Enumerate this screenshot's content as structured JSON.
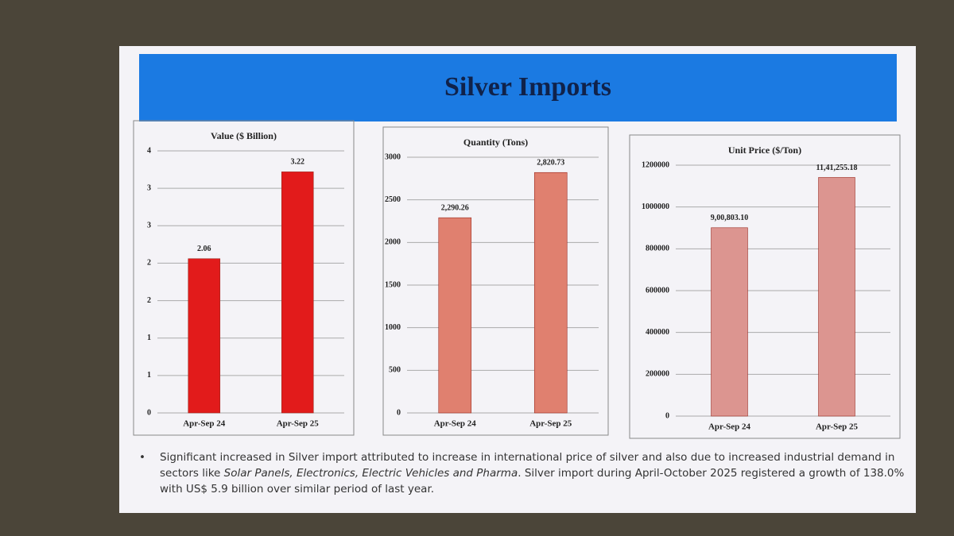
{
  "title": "Silver Imports",
  "note": [
    "Significant increased in Silver import attributed to increase in international price of silver and also due to increased industrial demand in sectors like ",
    "Solar Panels, Electronics, Electric Vehicles and Pharma",
    ". Silver import during April-October 2025 registered a growth of 138.0% with US$ 5.9 billion over similar period of last year."
  ],
  "chart_data": [
    {
      "type": "bar",
      "title": "Value ($ Billion)",
      "categories": [
        "Apr-Sep 24",
        "Apr-Sep 25"
      ],
      "values": [
        2.06,
        3.22
      ],
      "color": "#e21b1b",
      "ylim": [
        0,
        3.5
      ],
      "yticks": [
        0,
        {
          "value": 0.5,
          "label": "1"
        },
        {
          "value": 1,
          "label": "1"
        },
        {
          "value": 1.5,
          "label": "2"
        },
        {
          "value": 2,
          "label": "2"
        },
        {
          "value": 2.5,
          "label": "3"
        },
        {
          "value": 3,
          "label": "3"
        },
        {
          "value": 3.5,
          "label": "4"
        }
      ],
      "grid": true
    },
    {
      "type": "bar",
      "title": "Quantity (Tons)",
      "categories": [
        "Apr-Sep 24",
        "Apr-Sep 25"
      ],
      "values": [
        2290.26,
        2820.73
      ],
      "value_labels": [
        "2,290.26",
        "2,820.73"
      ],
      "color": "#e0806f",
      "ylim": [
        0,
        3000
      ],
      "yticks": [
        0,
        500,
        1000,
        1500,
        2000,
        2500,
        3000
      ],
      "grid": true
    },
    {
      "type": "bar",
      "title": "Unit Price ($/Ton)",
      "categories": [
        "Apr-Sep 24",
        "Apr-Sep 25"
      ],
      "values": [
        900803.1,
        1141255.18
      ],
      "value_labels": [
        "9,00,803.10",
        "11,41,255.18"
      ],
      "color": "#dc9590",
      "ylim": [
        0,
        1200000
      ],
      "yticks": [
        0,
        200000,
        400000,
        600000,
        800000,
        1000000,
        1200000
      ],
      "grid": true
    }
  ]
}
